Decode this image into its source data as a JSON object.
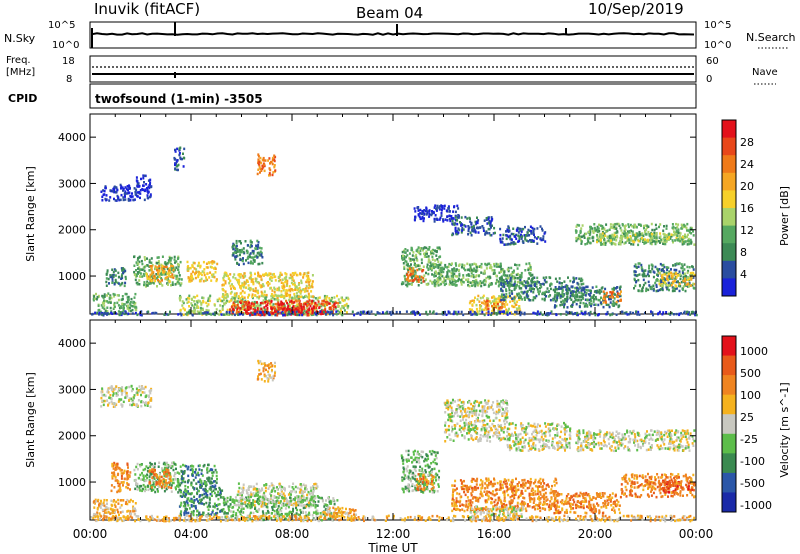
{
  "header": {
    "station": "Inuvik (fitACF)",
    "beam": "Beam 04",
    "date": "10/Sep/2019"
  },
  "top_panels": {
    "nsky_label": "N.Sky",
    "nsky_ticks": [
      "10^5",
      "10^0"
    ],
    "nsearch_label": "N.Search",
    "nsearch_ticks": [
      "10^5",
      "10^0"
    ],
    "freq_label_1": "Freq.",
    "freq_label_2": "[MHz]",
    "freq_ticks": [
      "18",
      "8"
    ],
    "nave_label": "Nave",
    "nave_ticks": [
      "60",
      "0"
    ],
    "cpid_label": "CPID",
    "cpid_value": "twofsound (1-min) -3505"
  },
  "chart_data": [
    {
      "type": "heatmap",
      "panel": "power",
      "xlabel": "Time UT",
      "ylabel": "Slant Range [km]",
      "x_ticks": [
        "00:00",
        "04:00",
        "08:00",
        "12:00",
        "16:00",
        "20:00",
        "00:00"
      ],
      "x_range_hours": [
        0,
        24
      ],
      "y_ticks": [
        1000,
        2000,
        3000,
        4000
      ],
      "ylim": [
        180,
        4500
      ],
      "colorbar": {
        "label": "Power [dB]",
        "ticks": [
          4,
          8,
          12,
          16,
          20,
          24,
          28
        ],
        "colors": [
          "#1a22d9",
          "#2a4da0",
          "#3c8a55",
          "#55a860",
          "#a9d36a",
          "#f6d02a",
          "#f5a623",
          "#ef7a19",
          "#e8471a",
          "#e3111b"
        ]
      },
      "regions": [
        {
          "t": [
            0.1,
            1.8
          ],
          "r": [
            200,
            650
          ],
          "level": 3
        },
        {
          "t": [
            0.6,
            1.4
          ],
          "r": [
            800,
            1200
          ],
          "level": 2
        },
        {
          "t": [
            1.7,
            3.6
          ],
          "r": [
            800,
            1450
          ],
          "level": 3
        },
        {
          "t": [
            2.2,
            3.3
          ],
          "r": [
            900,
            1250
          ],
          "level": 6
        },
        {
          "t": [
            3.5,
            10.2
          ],
          "r": [
            180,
            600
          ],
          "level": 4
        },
        {
          "t": [
            5.5,
            9.8
          ],
          "r": [
            200,
            500
          ],
          "level": 8
        },
        {
          "t": [
            6.0,
            9.2
          ],
          "r": [
            180,
            350
          ],
          "level": 9
        },
        {
          "t": [
            5.2,
            8.8
          ],
          "r": [
            550,
            1100
          ],
          "level": 5
        },
        {
          "t": [
            3.8,
            5.0
          ],
          "r": [
            900,
            1350
          ],
          "level": 5
        },
        {
          "t": [
            5.6,
            6.8
          ],
          "r": [
            1250,
            1800
          ],
          "level": 2
        },
        {
          "t": [
            6.6,
            7.3
          ],
          "r": [
            3200,
            3650
          ],
          "level": 7
        },
        {
          "t": [
            3.3,
            3.7
          ],
          "r": [
            3300,
            3800
          ],
          "level": 1
        },
        {
          "t": [
            0.4,
            2.4
          ],
          "r": [
            2650,
            3000
          ],
          "level": 0
        },
        {
          "t": [
            1.8,
            2.4
          ],
          "r": [
            2950,
            3200
          ],
          "level": 0
        },
        {
          "t": [
            12.3,
            13.9
          ],
          "r": [
            800,
            1650
          ],
          "level": 3
        },
        {
          "t": [
            12.5,
            13.2
          ],
          "r": [
            900,
            1200
          ],
          "level": 7
        },
        {
          "t": [
            13.5,
            17.5
          ],
          "r": [
            800,
            1300
          ],
          "level": 3
        },
        {
          "t": [
            15.0,
            17.0
          ],
          "r": [
            200,
            600
          ],
          "level": 5
        },
        {
          "t": [
            15.6,
            16.4
          ],
          "r": [
            300,
            500
          ],
          "level": 7
        },
        {
          "t": [
            16.2,
            19.5
          ],
          "r": [
            500,
            1000
          ],
          "level": 2
        },
        {
          "t": [
            12.8,
            14.6
          ],
          "r": [
            2200,
            2550
          ],
          "level": 0
        },
        {
          "t": [
            14.3,
            16.0
          ],
          "r": [
            1900,
            2300
          ],
          "level": 1
        },
        {
          "t": [
            16.2,
            18.0
          ],
          "r": [
            1700,
            2100
          ],
          "level": 1
        },
        {
          "t": [
            19.2,
            23.9
          ],
          "r": [
            1700,
            2150
          ],
          "level": 3
        },
        {
          "t": [
            20.0,
            23.8
          ],
          "r": [
            1750,
            1950
          ],
          "level": 4
        },
        {
          "t": [
            18.3,
            21.0
          ],
          "r": [
            350,
            800
          ],
          "level": 2
        },
        {
          "t": [
            20.3,
            21.0
          ],
          "r": [
            450,
            700
          ],
          "level": 7
        },
        {
          "t": [
            21.5,
            23.9
          ],
          "r": [
            700,
            1300
          ],
          "level": 2
        },
        {
          "t": [
            22.5,
            23.9
          ],
          "r": [
            800,
            1100
          ],
          "level": 5
        },
        {
          "t": [
            0.0,
            24.0
          ],
          "r": [
            180,
            260
          ],
          "level": 1
        }
      ]
    },
    {
      "type": "heatmap",
      "panel": "velocity",
      "xlabel": "Time UT",
      "ylabel": "Slant Range [km]",
      "x_ticks": [
        "00:00",
        "04:00",
        "08:00",
        "12:00",
        "16:00",
        "20:00",
        "00:00"
      ],
      "x_range_hours": [
        0,
        24
      ],
      "y_ticks": [
        1000,
        2000,
        3000,
        4000
      ],
      "ylim": [
        180,
        4500
      ],
      "colorbar": {
        "label": "Velocity [m s^-1]",
        "ticks": [
          "1000",
          "500",
          "100",
          "25",
          "-25",
          "-100",
          "-500",
          "-1000"
        ],
        "colors": [
          "#1a2aa8",
          "#2b57a8",
          "#3a8a50",
          "#5cbd4a",
          "#c8c8c0",
          "#f5b21e",
          "#ef8420",
          "#e85a1a",
          "#e3111b"
        ]
      },
      "regions": [
        {
          "t": [
            0.1,
            1.8
          ],
          "r": [
            200,
            650
          ],
          "level": 5
        },
        {
          "t": [
            0.8,
            1.6
          ],
          "r": [
            800,
            1450
          ],
          "level": 6
        },
        {
          "t": [
            1.7,
            3.6
          ],
          "r": [
            800,
            1450
          ],
          "level": 3
        },
        {
          "t": [
            2.3,
            3.2
          ],
          "r": [
            900,
            1300
          ],
          "level": 6
        },
        {
          "t": [
            3.5,
            5.2
          ],
          "r": [
            300,
            900
          ],
          "level": 2
        },
        {
          "t": [
            5.2,
            9.8
          ],
          "r": [
            200,
            700
          ],
          "level": 3
        },
        {
          "t": [
            5.8,
            9.0
          ],
          "r": [
            500,
            1000
          ],
          "level": 4
        },
        {
          "t": [
            3.6,
            5.0
          ],
          "r": [
            900,
            1400
          ],
          "level": 2
        },
        {
          "t": [
            9.2,
            10.5
          ],
          "r": [
            200,
            500
          ],
          "level": 5
        },
        {
          "t": [
            6.6,
            7.3
          ],
          "r": [
            3200,
            3650
          ],
          "level": 5
        },
        {
          "t": [
            0.4,
            2.4
          ],
          "r": [
            2650,
            3100
          ],
          "level": 4
        },
        {
          "t": [
            12.3,
            13.8
          ],
          "r": [
            800,
            1700
          ],
          "level": 3
        },
        {
          "t": [
            12.9,
            13.6
          ],
          "r": [
            850,
            1200
          ],
          "level": 6
        },
        {
          "t": [
            14.3,
            18.5
          ],
          "r": [
            400,
            1100
          ],
          "level": 6
        },
        {
          "t": [
            15.0,
            17.2
          ],
          "r": [
            200,
            500
          ],
          "level": 4
        },
        {
          "t": [
            14.0,
            16.5
          ],
          "r": [
            1900,
            2800
          ],
          "level": 4
        },
        {
          "t": [
            16.5,
            19.0
          ],
          "r": [
            1700,
            2300
          ],
          "level": 4
        },
        {
          "t": [
            19.2,
            23.9
          ],
          "r": [
            1700,
            2150
          ],
          "level": 4
        },
        {
          "t": [
            18.3,
            21.0
          ],
          "r": [
            350,
            800
          ],
          "level": 6
        },
        {
          "t": [
            21.0,
            23.9
          ],
          "r": [
            700,
            1200
          ],
          "level": 6
        },
        {
          "t": [
            22.5,
            23.9
          ],
          "r": [
            800,
            1050
          ],
          "level": 7
        },
        {
          "t": [
            0.0,
            24.0
          ],
          "r": [
            180,
            300
          ],
          "level": 5
        }
      ]
    }
  ],
  "axes": {
    "xlabel": "Time UT",
    "ylabel": "Slant Range [km]",
    "power_label": "Power [dB]",
    "velocity_label": "Velocity [m s^-1]"
  }
}
